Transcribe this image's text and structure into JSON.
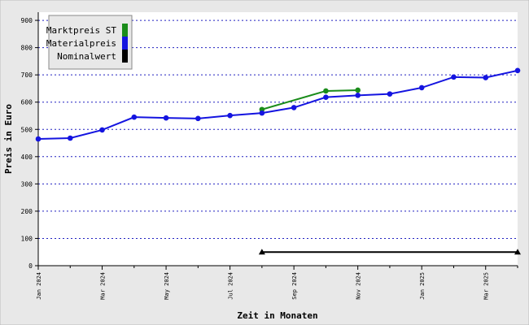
{
  "chart_data": {
    "type": "line",
    "x_label": "Zeit in Monaten",
    "y_label": "Preis in Euro",
    "categories": [
      "Jan 2024",
      null,
      "Mar 2024",
      null,
      "May 2024",
      null,
      "Jul 2024",
      null,
      "Sep 2024",
      null,
      "Nov 2024",
      null,
      "Jan 2025",
      null,
      "Mar 2025",
      null
    ],
    "series": [
      {
        "name": "Marktpreis ST",
        "color": "#1a8c1a",
        "marker": "circle",
        "connect_gaps": true,
        "values": [
          null,
          null,
          null,
          null,
          null,
          null,
          null,
          573,
          null,
          641,
          644,
          null,
          null,
          null,
          null,
          null
        ]
      },
      {
        "name": "Materialpreis",
        "color": "#1414e0",
        "marker": "circle",
        "connect_gaps": true,
        "values": [
          465,
          468,
          498,
          545,
          542,
          540,
          551,
          560,
          580,
          618,
          625,
          630,
          653,
          692,
          690,
          716
        ]
      },
      {
        "name": "Nominalwert",
        "color": "#000000",
        "marker": "triangle",
        "connect_gaps": true,
        "values": [
          null,
          null,
          null,
          null,
          null,
          null,
          null,
          50,
          null,
          null,
          null,
          null,
          null,
          null,
          null,
          50
        ]
      }
    ],
    "ylim": [
      0,
      930
    ],
    "yticks": [
      0,
      100,
      200,
      300,
      400,
      500,
      600,
      700,
      800,
      900
    ],
    "grid": true,
    "legend": "upper-left"
  }
}
